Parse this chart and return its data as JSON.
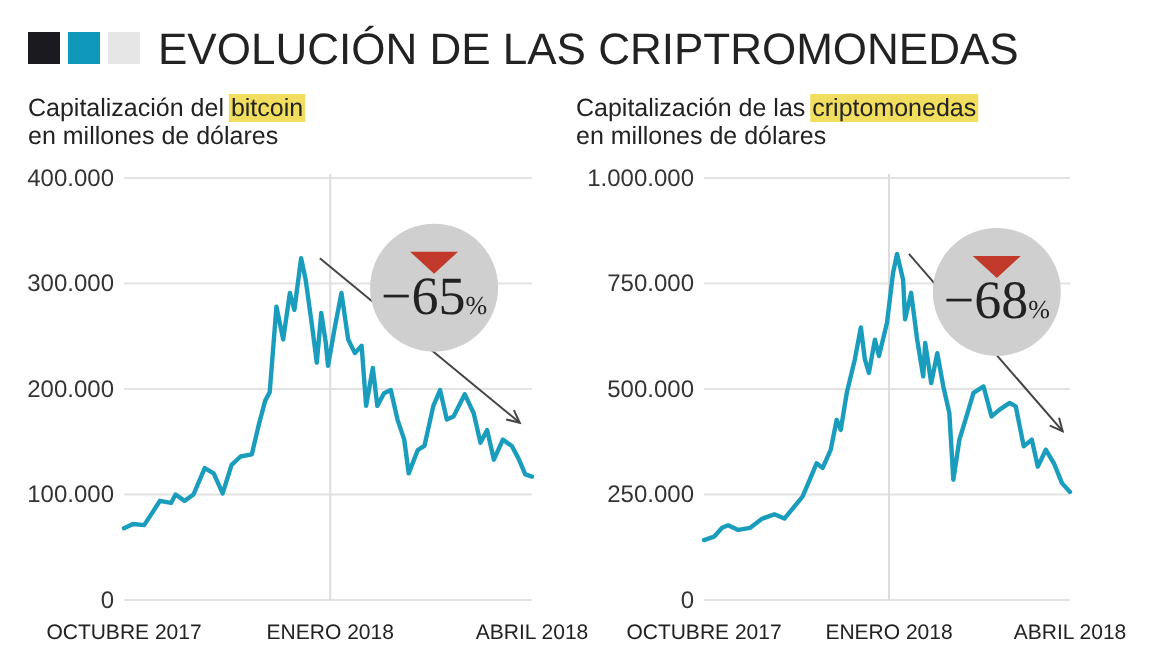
{
  "chart_data": [
    {
      "type": "line",
      "title": "EVOLUCIÓN DE LAS CRIPTROMONEDAS",
      "subtitle": "Capitalización del bitcoin\nen millones de dólares",
      "color": "#1a9dbd",
      "x": [
        "2017-10-01",
        "2017-10-05",
        "2017-10-10",
        "2017-10-14",
        "2017-10-17",
        "2017-10-22",
        "2017-10-24",
        "2017-10-28",
        "2017-11-01",
        "2017-11-06",
        "2017-11-10",
        "2017-11-14",
        "2017-11-18",
        "2017-11-22",
        "2017-11-27",
        "2017-11-30",
        "2017-12-03",
        "2017-12-05",
        "2017-12-08",
        "2017-12-11",
        "2017-12-14",
        "2017-12-16",
        "2017-12-19",
        "2017-12-21",
        "2017-12-24",
        "2017-12-26",
        "2017-12-28",
        "2017-12-30",
        "2017-12-31",
        "2018-01-03",
        "2018-01-06",
        "2018-01-09",
        "2018-01-12",
        "2018-01-15",
        "2018-01-17",
        "2018-01-20",
        "2018-01-22",
        "2018-01-25",
        "2018-01-28",
        "2018-01-31",
        "2018-02-03",
        "2018-02-05",
        "2018-02-09",
        "2018-02-12",
        "2018-02-16",
        "2018-02-19",
        "2018-02-22",
        "2018-02-25",
        "2018-03-02",
        "2018-03-06",
        "2018-03-09",
        "2018-03-12",
        "2018-03-15",
        "2018-03-19",
        "2018-03-23",
        "2018-03-26",
        "2018-03-29",
        "2018-04-01"
      ],
      "values": [
        68000,
        72000,
        71000,
        84000,
        94000,
        92000,
        100000,
        94000,
        100000,
        125000,
        120000,
        101000,
        128000,
        136000,
        138000,
        165000,
        189000,
        197000,
        278000,
        247000,
        291000,
        275000,
        324000,
        304000,
        258000,
        225000,
        272000,
        244000,
        222000,
        258000,
        291000,
        247000,
        234000,
        241000,
        184000,
        220000,
        184000,
        196000,
        199000,
        171000,
        152000,
        120000,
        142000,
        146000,
        184000,
        199000,
        171000,
        174000,
        195000,
        177000,
        149000,
        161000,
        133000,
        152000,
        146000,
        134000,
        119000,
        117000
      ],
      "xlim": [
        "2017-10-01",
        "2018-04-01"
      ],
      "xticks": [
        {
          "value": "2017-10-01",
          "label": "OCTUBRE 2017"
        },
        {
          "value": "2018-01-01",
          "label": "ENERO 2018"
        },
        {
          "value": "2018-04-01",
          "label": "ABRIL 2018"
        }
      ],
      "ylim": [
        0,
        400000
      ],
      "yticks": [
        0,
        {
          "value": 100000,
          "label": "100.000"
        },
        {
          "value": 200000,
          "label": "200.000"
        },
        {
          "value": 300000,
          "label": "300.000"
        },
        {
          "value": 400000,
          "label": "400.000"
        }
      ],
      "grid": "y",
      "ref_lines": [
        {
          "axis": "x",
          "value": "2018-01-01",
          "color": "#dddddd"
        }
      ],
      "annotations": [
        "−65%"
      ]
    },
    {
      "type": "line",
      "subtitle": "Capitalización de las criptomonedas\nen millones de dólares",
      "color": "#1a9dbd",
      "x": [
        "2017-10-01",
        "2017-10-06",
        "2017-10-10",
        "2017-10-13",
        "2017-10-18",
        "2017-10-24",
        "2017-10-30",
        "2017-11-05",
        "2017-11-10",
        "2017-11-15",
        "2017-11-19",
        "2017-11-24",
        "2017-11-26",
        "2017-11-29",
        "2017-12-03",
        "2017-12-06",
        "2017-12-08",
        "2017-12-11",
        "2017-12-15",
        "2017-12-18",
        "2017-12-20",
        "2017-12-22",
        "2017-12-25",
        "2017-12-27",
        "2017-12-31",
        "2018-01-03",
        "2018-01-05",
        "2018-01-08",
        "2018-01-09",
        "2018-01-12",
        "2018-01-15",
        "2018-01-18",
        "2018-01-19",
        "2018-01-22",
        "2018-01-25",
        "2018-01-28",
        "2018-01-31",
        "2018-02-02",
        "2018-02-05",
        "2018-02-08",
        "2018-02-12",
        "2018-02-17",
        "2018-02-21",
        "2018-02-25",
        "2018-03-02",
        "2018-03-05",
        "2018-03-09",
        "2018-03-13",
        "2018-03-16",
        "2018-03-20",
        "2018-03-24",
        "2018-03-28",
        "2018-04-01"
      ],
      "values": [
        142000,
        150000,
        171000,
        177000,
        166000,
        171000,
        193000,
        203000,
        193000,
        222000,
        245000,
        301000,
        324000,
        313000,
        356000,
        427000,
        403000,
        491000,
        570000,
        646000,
        570000,
        538000,
        617000,
        578000,
        657000,
        775000,
        820000,
        759000,
        665000,
        728000,
        617000,
        530000,
        609000,
        514000,
        585000,
        506000,
        443000,
        285000,
        380000,
        427000,
        491000,
        506000,
        435000,
        451000,
        467000,
        459000,
        364000,
        380000,
        316000,
        356000,
        324000,
        277000,
        256000
      ],
      "xlim": [
        "2017-10-01",
        "2018-04-01"
      ],
      "xticks": [
        {
          "value": "2017-10-01",
          "label": "OCTUBRE 2017"
        },
        {
          "value": "2018-01-01",
          "label": "ENERO 2018"
        },
        {
          "value": "2018-04-01",
          "label": "ABRIL 2018"
        }
      ],
      "ylim": [
        0,
        1000000
      ],
      "yticks": [
        0,
        {
          "value": 250000,
          "label": "250.000"
        },
        {
          "value": 500000,
          "label": "500.000"
        },
        {
          "value": 750000,
          "label": "750.000"
        },
        {
          "value": 1000000,
          "label": "1.000.000"
        }
      ],
      "grid": "y",
      "ref_lines": [
        {
          "axis": "x",
          "value": "2018-01-01",
          "color": "#dddddd"
        }
      ],
      "annotations": [
        "−68%"
      ]
    }
  ]
}
